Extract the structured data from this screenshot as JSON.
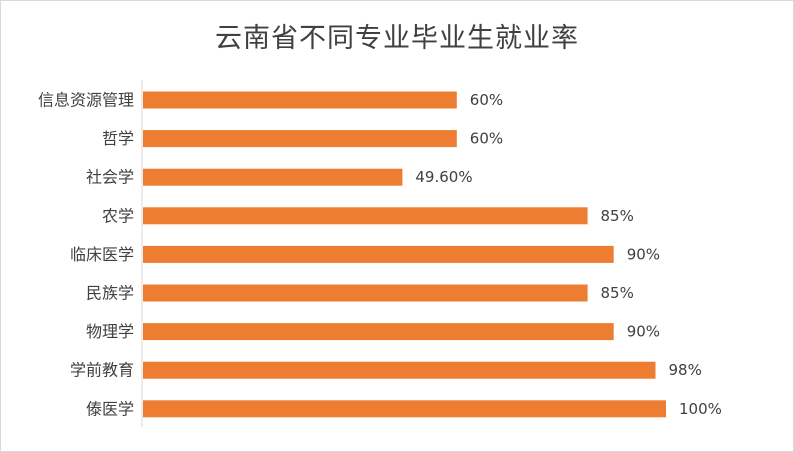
{
  "chart_data": {
    "type": "bar",
    "orientation": "horizontal",
    "title": "云南省不同专业毕业生就业率",
    "categories": [
      "信息资源管理",
      "哲学",
      "社会学",
      "农学",
      "临床医学",
      "民族学",
      "物理学",
      "学前教育",
      "傣医学"
    ],
    "values": [
      60,
      60,
      49.6,
      85,
      90,
      85,
      90,
      98,
      100
    ],
    "value_labels": [
      "60%",
      "60%",
      "49.60%",
      "85%",
      "90%",
      "85%",
      "90%",
      "98%",
      "100%"
    ],
    "unit": "%",
    "xlim": [
      0,
      100
    ],
    "grid": false,
    "legend": "none",
    "bar_color": "#ed7d31",
    "axis_color": "#d9d9d9"
  }
}
